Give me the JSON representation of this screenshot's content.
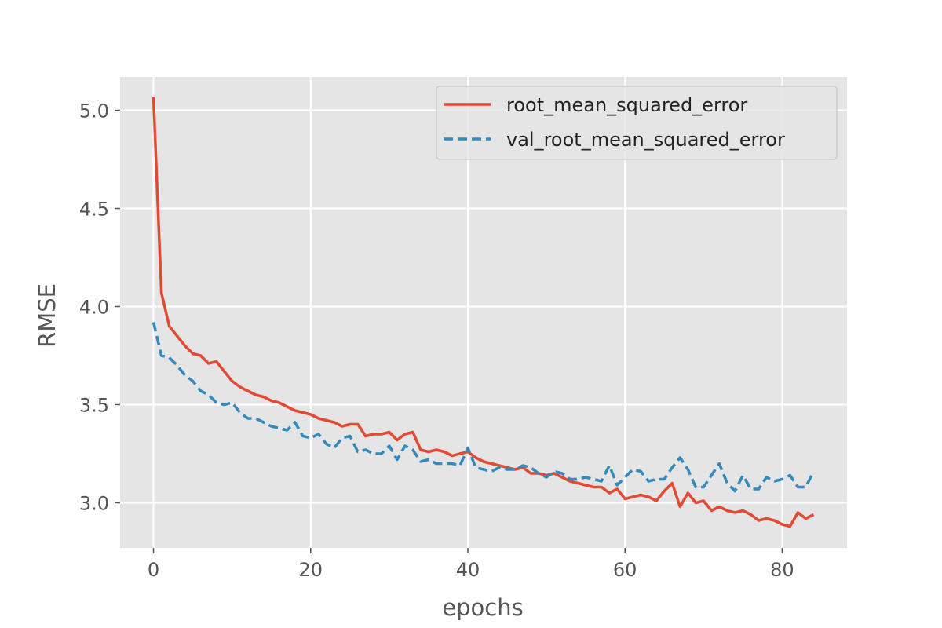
{
  "chart_data": {
    "type": "line",
    "title": "",
    "xlabel": "epochs",
    "ylabel": "RMSE",
    "xlim": [
      -4.25,
      88.25
    ],
    "ylim": [
      2.77,
      5.17
    ],
    "xticks": [
      0,
      20,
      40,
      60,
      80
    ],
    "xtick_labels": [
      "0",
      "20",
      "40",
      "60",
      "80"
    ],
    "yticks": [
      3.0,
      3.5,
      4.0,
      4.5,
      5.0
    ],
    "ytick_labels": [
      "3.0",
      "3.5",
      "4.0",
      "4.5",
      "5.0"
    ],
    "grid": true,
    "legend_position": "top-right",
    "x": [
      0,
      1,
      2,
      3,
      4,
      5,
      6,
      7,
      8,
      9,
      10,
      11,
      12,
      13,
      14,
      15,
      16,
      17,
      18,
      19,
      20,
      21,
      22,
      23,
      24,
      25,
      26,
      27,
      28,
      29,
      30,
      31,
      32,
      33,
      34,
      35,
      36,
      37,
      38,
      39,
      40,
      41,
      42,
      43,
      44,
      45,
      46,
      47,
      48,
      49,
      50,
      51,
      52,
      53,
      54,
      55,
      56,
      57,
      58,
      59,
      60,
      61,
      62,
      63,
      64,
      65,
      66,
      67,
      68,
      69,
      70,
      71,
      72,
      73,
      74,
      75,
      76,
      77,
      78,
      79,
      80,
      81,
      82,
      83,
      84
    ],
    "series": [
      {
        "name": "root_mean_squared_error",
        "color": "#E24A33",
        "style": "solid",
        "values": [
          5.07,
          4.07,
          3.9,
          3.85,
          3.8,
          3.76,
          3.75,
          3.71,
          3.72,
          3.67,
          3.62,
          3.59,
          3.57,
          3.55,
          3.54,
          3.52,
          3.51,
          3.49,
          3.47,
          3.46,
          3.45,
          3.43,
          3.42,
          3.41,
          3.39,
          3.4,
          3.4,
          3.34,
          3.35,
          3.35,
          3.36,
          3.32,
          3.35,
          3.36,
          3.27,
          3.26,
          3.27,
          3.26,
          3.24,
          3.25,
          3.26,
          3.23,
          3.21,
          3.2,
          3.19,
          3.18,
          3.17,
          3.18,
          3.15,
          3.15,
          3.14,
          3.15,
          3.13,
          3.11,
          3.1,
          3.09,
          3.08,
          3.08,
          3.05,
          3.07,
          3.02,
          3.03,
          3.04,
          3.03,
          3.01,
          3.06,
          3.1,
          2.98,
          3.05,
          3.0,
          3.01,
          2.96,
          2.98,
          2.96,
          2.95,
          2.96,
          2.94,
          2.91,
          2.92,
          2.91,
          2.89,
          2.88,
          2.95,
          2.92,
          2.94
        ]
      },
      {
        "name": "val_root_mean_squared_error",
        "color": "#348ABD",
        "style": "dashed",
        "values": [
          3.92,
          3.75,
          3.74,
          3.7,
          3.65,
          3.62,
          3.57,
          3.55,
          3.51,
          3.5,
          3.51,
          3.46,
          3.43,
          3.43,
          3.41,
          3.39,
          3.38,
          3.37,
          3.41,
          3.34,
          3.33,
          3.35,
          3.3,
          3.28,
          3.33,
          3.34,
          3.26,
          3.27,
          3.25,
          3.25,
          3.29,
          3.22,
          3.29,
          3.27,
          3.21,
          3.22,
          3.2,
          3.2,
          3.2,
          3.19,
          3.28,
          3.18,
          3.17,
          3.16,
          3.18,
          3.17,
          3.17,
          3.19,
          3.18,
          3.15,
          3.13,
          3.16,
          3.15,
          3.12,
          3.12,
          3.13,
          3.12,
          3.11,
          3.19,
          3.09,
          3.13,
          3.17,
          3.16,
          3.11,
          3.12,
          3.12,
          3.18,
          3.23,
          3.17,
          3.08,
          3.08,
          3.14,
          3.2,
          3.1,
          3.06,
          3.14,
          3.07,
          3.07,
          3.13,
          3.11,
          3.12,
          3.14,
          3.08,
          3.08,
          3.16
        ]
      }
    ]
  }
}
